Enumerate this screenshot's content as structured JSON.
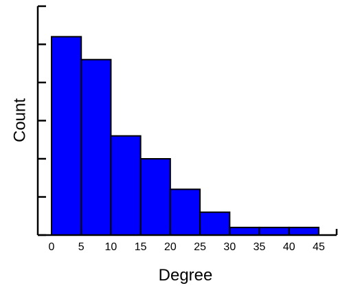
{
  "chart_data": {
    "type": "bar",
    "xlabel": "Degree",
    "ylabel": "Count",
    "bin_edges": [
      0,
      5,
      10,
      15,
      20,
      25,
      30,
      35,
      40,
      45
    ],
    "values": [
      26,
      23,
      13,
      10,
      6,
      3,
      1,
      1,
      1
    ],
    "x_ticks": [
      "0",
      "5",
      "10",
      "15",
      "20",
      "25",
      "30",
      "35",
      "40",
      "45"
    ],
    "xlim": [
      -2,
      48
    ],
    "ylim": [
      0,
      30
    ],
    "y_ticks": [
      0,
      5,
      10,
      15,
      20,
      25,
      30
    ],
    "y_tick_labels_shown": false,
    "bar_color": "#0000ff",
    "edge_color": "#000000",
    "grid": false,
    "legend": "none"
  }
}
